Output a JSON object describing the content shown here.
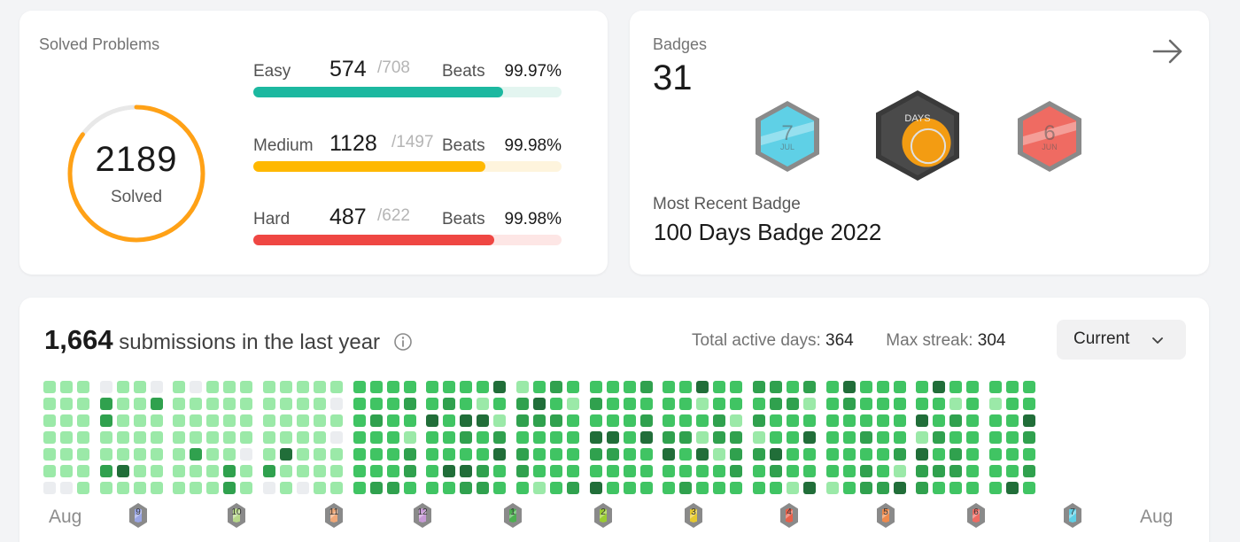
{
  "solved": {
    "title": "Solved Problems",
    "count": "2189",
    "label": "Solved",
    "progress": 0.85,
    "levels": [
      {
        "name": "Easy",
        "count": "574",
        "total": "/708",
        "beats_label": "Beats",
        "beats": "99.97%",
        "ratio": 0.81,
        "color": "#1cb8a0",
        "track": "#e3f5f0"
      },
      {
        "name": "Medium",
        "count": "1128",
        "total": "/1497",
        "beats_label": "Beats",
        "beats": "99.98%",
        "ratio": 0.754,
        "color": "#ffb800",
        "track": "#fef4dd"
      },
      {
        "name": "Hard",
        "count": "487",
        "total": "/622",
        "beats_label": "Beats",
        "beats": "99.98%",
        "ratio": 0.783,
        "color": "#ef4743",
        "track": "#fde6e5"
      }
    ]
  },
  "badges": {
    "title": "Badges",
    "count": "31",
    "recent_label": "Most Recent Badge",
    "recent_name": "100 Days Badge 2022",
    "items": [
      {
        "icon": "july-badge-icon",
        "text": "7",
        "sub": "JUL",
        "color": "#5fd0e6"
      },
      {
        "icon": "100-days-badge-icon",
        "text": "DAYS",
        "sub": "",
        "color": "#f39c12"
      },
      {
        "icon": "june-badge-icon",
        "text": "6",
        "sub": "JUN",
        "color": "#ef6b62"
      }
    ]
  },
  "submissions": {
    "count": "1,664",
    "text": "submissions in the last year",
    "active_days_label": "Total active days:",
    "active_days": "364",
    "max_streak_label": "Max streak:",
    "max_streak": "304",
    "select": "Current",
    "month_start": "Aug",
    "month_end": "Aug",
    "month_badges": [
      {
        "icon": "sep-badge-icon",
        "text": "9",
        "color": "#9aa6e6"
      },
      {
        "icon": "oct-badge-icon",
        "text": "10",
        "color": "#b7d98a"
      },
      {
        "icon": "nov-badge-icon",
        "text": "11",
        "color": "#f0a878"
      },
      {
        "icon": "dec-badge-icon",
        "text": "12",
        "color": "#c79ad6"
      },
      {
        "icon": "jan-badge-icon",
        "text": "1",
        "color": "#4caf50"
      },
      {
        "icon": "feb-badge-icon",
        "text": "2",
        "color": "#9acd32"
      },
      {
        "icon": "mar-badge-icon",
        "text": "3",
        "color": "#e6c930"
      },
      {
        "icon": "apr-badge-icon",
        "text": "4",
        "color": "#e8604a"
      },
      {
        "icon": "may-badge-icon",
        "text": "5",
        "color": "#ef8a4c"
      },
      {
        "icon": "jun-badge-icon",
        "text": "6",
        "color": "#ef6b62"
      },
      {
        "icon": "jul-badge-icon",
        "text": "7",
        "color": "#5fd0e6"
      }
    ]
  }
}
